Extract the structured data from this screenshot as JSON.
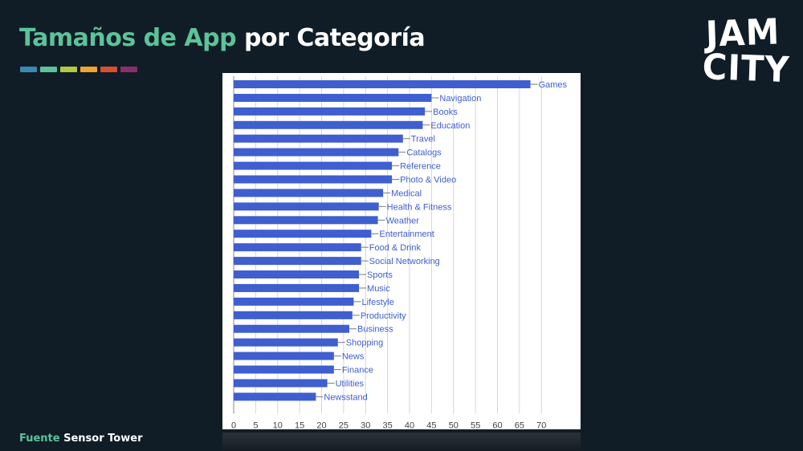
{
  "title": {
    "highlight": "Tamaños de App",
    "rest": "por Categoría"
  },
  "logo": {
    "line1": "JAM",
    "line2": "CITY"
  },
  "source": {
    "label": "Fuente",
    "name": "Sensor Tower"
  },
  "colors": {
    "background": "#111d26",
    "accent": "#5cc39a",
    "bar": "#3f5ecf",
    "stripes": [
      "#3b8ab3",
      "#5cc39a",
      "#b3c940",
      "#f0a531",
      "#d9502f",
      "#8a2f6b"
    ]
  },
  "chart_data": {
    "type": "bar",
    "orientation": "horizontal",
    "categories": [
      "Games",
      "Navigation",
      "Books",
      "Education",
      "Travel",
      "Catalogs",
      "Reference",
      "Photo & Video",
      "Medical",
      "Health & Fitness",
      "Weather",
      "Entertainment",
      "Food & Drink",
      "Social Networking",
      "Sports",
      "Music",
      "Lifestyle",
      "Productivity",
      "Business",
      "Shopping",
      "News",
      "Finance",
      "Utilities",
      "Newsstand"
    ],
    "values": [
      67.5,
      45,
      43.5,
      43,
      38.5,
      37.5,
      36,
      36,
      34,
      33,
      32.8,
      31.3,
      29,
      29,
      28.5,
      28.5,
      27.3,
      27,
      26.3,
      23.7,
      22.8,
      22.8,
      21.3,
      18.7
    ],
    "xticks": [
      0,
      5,
      10,
      15,
      20,
      25,
      30,
      35,
      40,
      45,
      50,
      55,
      60,
      65,
      70
    ],
    "xlim": [
      0,
      75
    ],
    "grid": true,
    "xlabel": "",
    "ylabel": ""
  }
}
